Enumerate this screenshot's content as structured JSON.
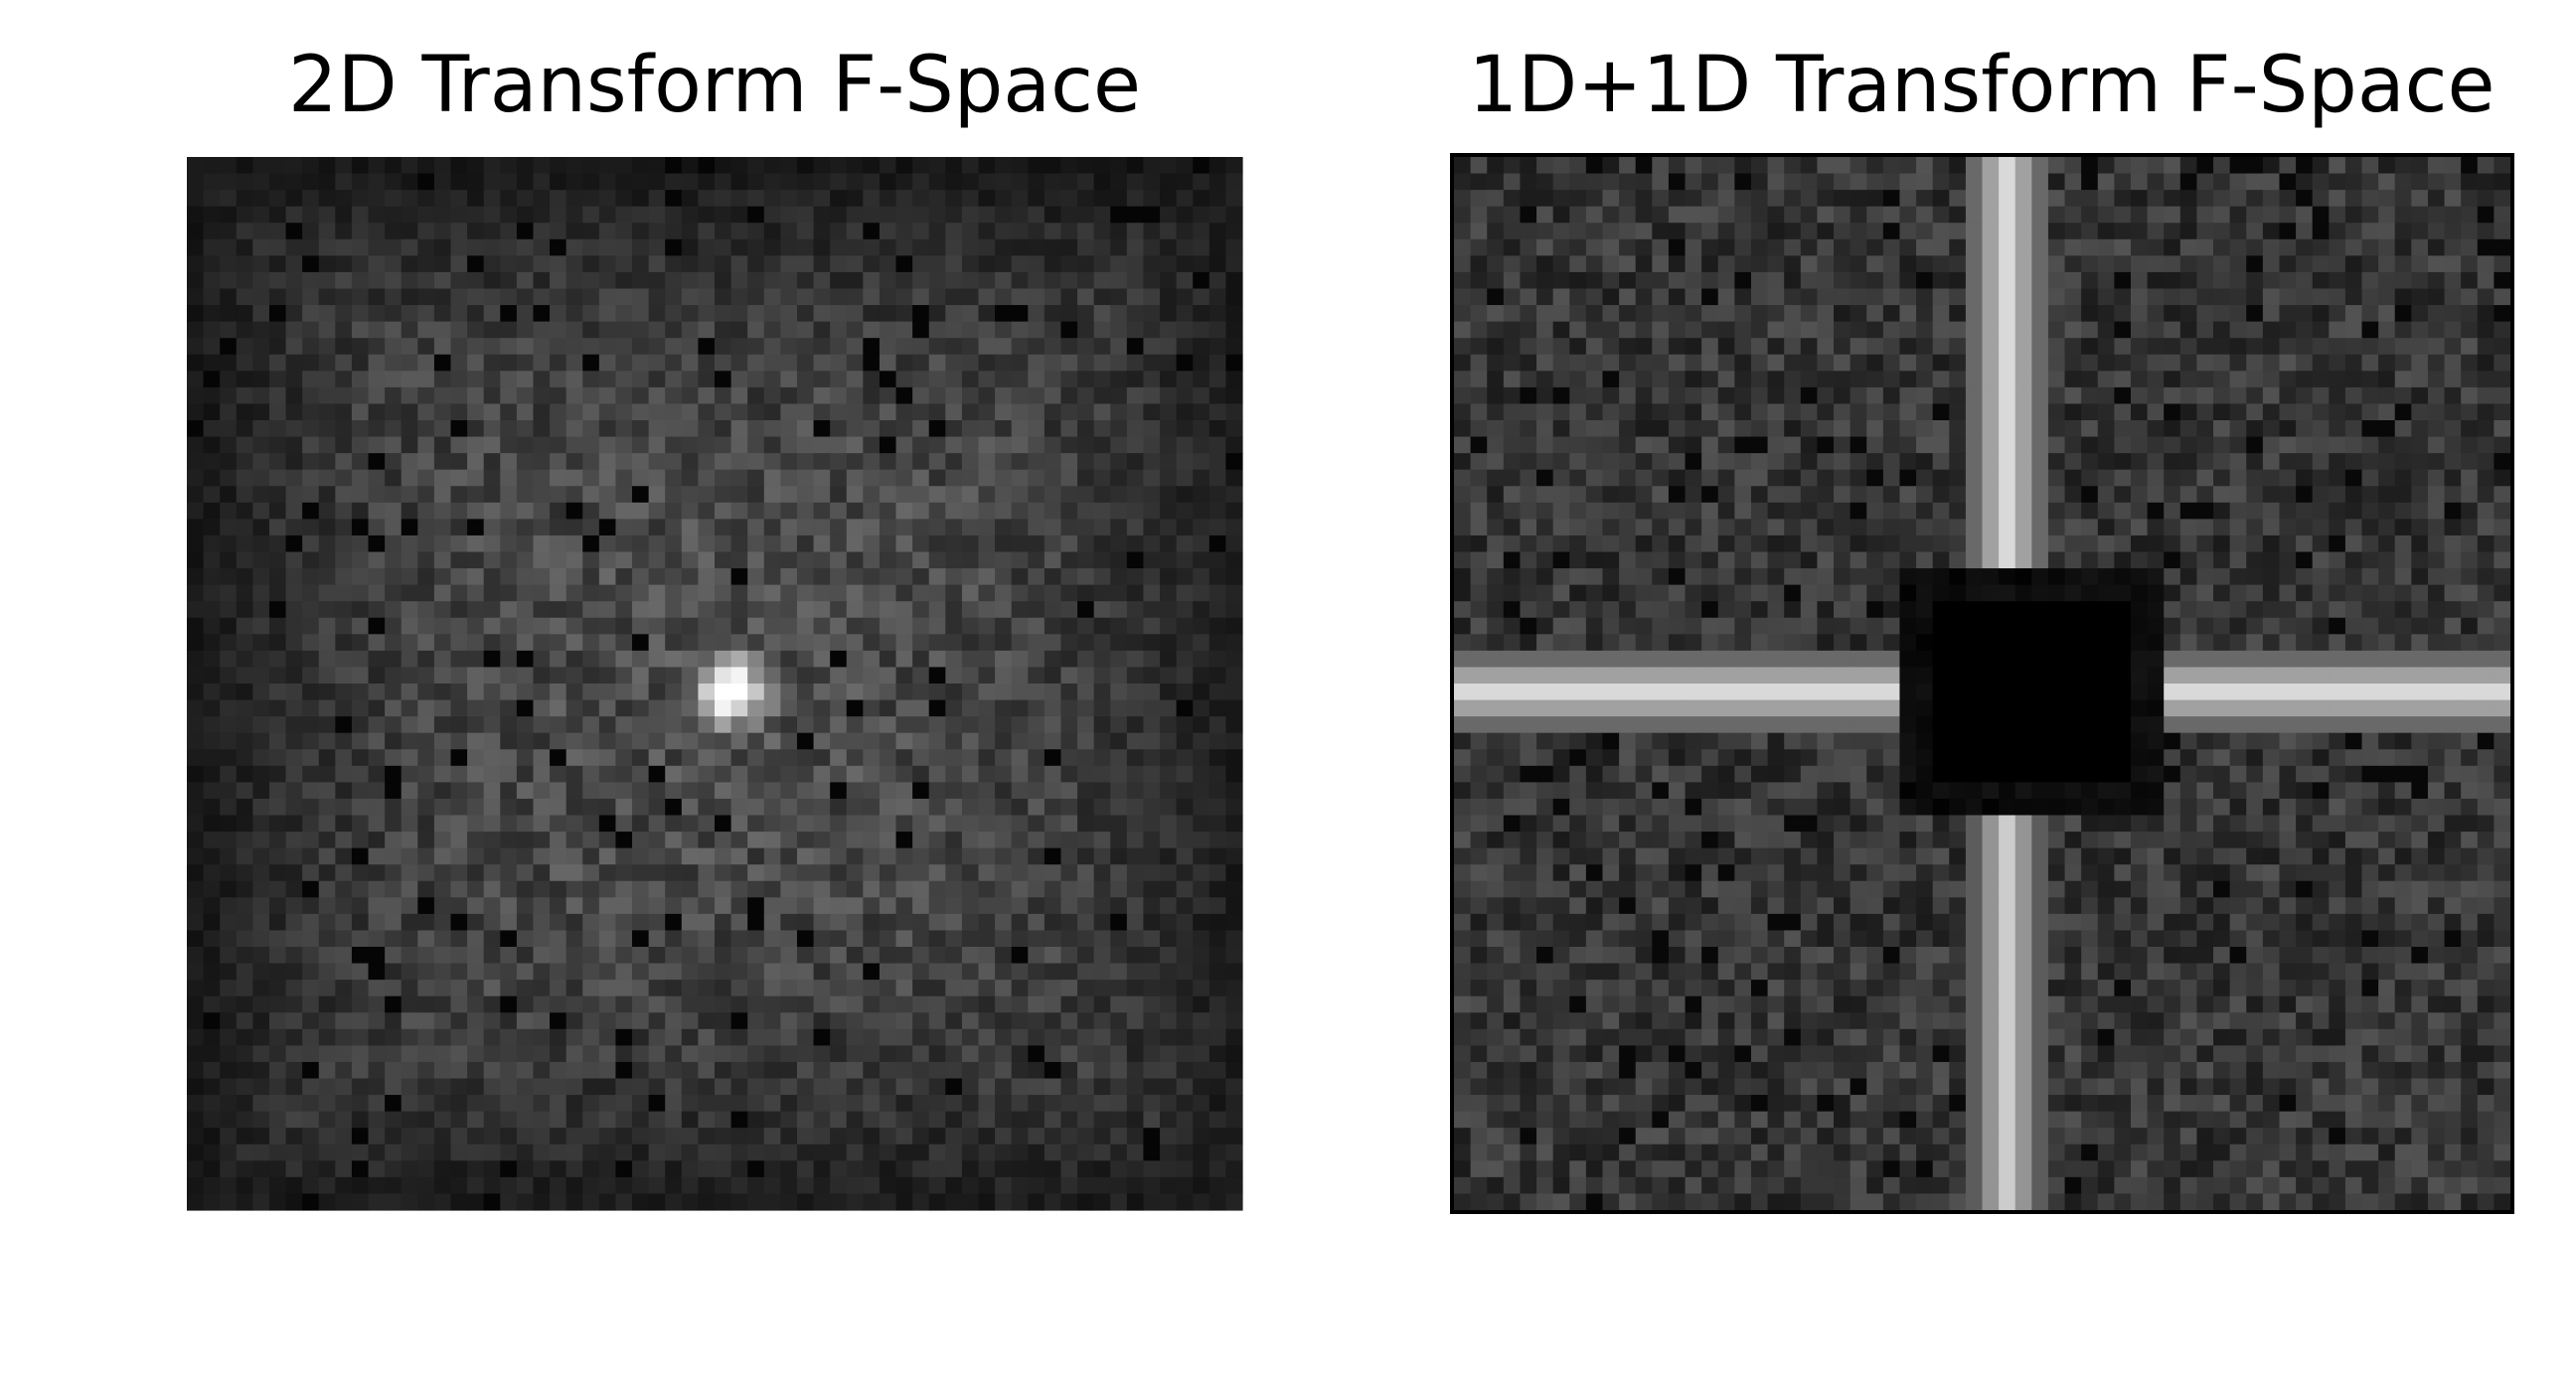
{
  "panels": [
    {
      "title": "2D Transform F-Space"
    },
    {
      "title": "1D+1D Transform F-Space"
    }
  ]
}
